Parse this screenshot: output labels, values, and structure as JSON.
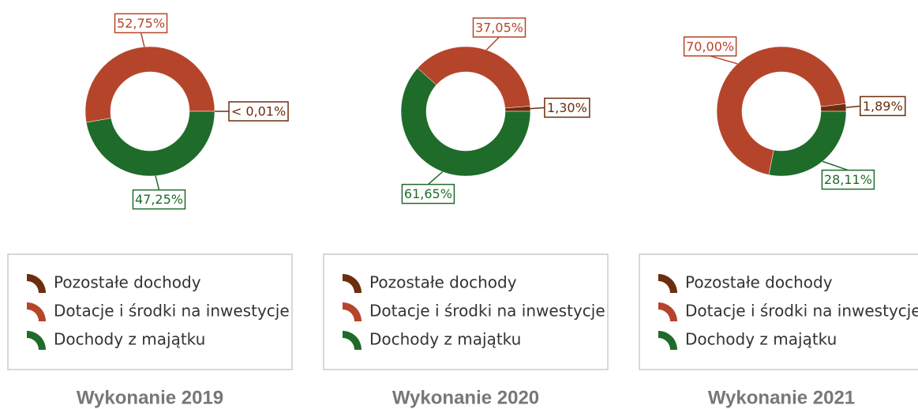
{
  "chart_data": [
    {
      "type": "pie",
      "title": "Wykonanie 2019",
      "categories": [
        "Pozostałe dochody",
        "Dotacje i środki na inwestycje",
        "Dochody z majątku"
      ],
      "values": [
        0,
        52.75,
        47.25
      ],
      "value_labels": [
        "< 0,01%",
        "52,75%",
        "47,25%"
      ],
      "colors": [
        "#6b2e0e",
        "#b5452a",
        "#1f6b2a"
      ]
    },
    {
      "type": "pie",
      "title": "Wykonanie 2020",
      "categories": [
        "Pozostałe dochody",
        "Dotacje i środki na inwestycje",
        "Dochody z majątku"
      ],
      "values": [
        1.3,
        37.05,
        61.65
      ],
      "value_labels": [
        "1,30%",
        "37,05%",
        "61,65%"
      ],
      "colors": [
        "#6b2e0e",
        "#b5452a",
        "#1f6b2a"
      ]
    },
    {
      "type": "pie",
      "title": "Wykonanie 2021",
      "categories": [
        "Pozostałe dochody",
        "Dotacje i środki na inwestycje",
        "Dochody z majątku"
      ],
      "values": [
        1.89,
        70.0,
        28.11
      ],
      "value_labels": [
        "1,89%",
        "70,00%",
        "28,11%"
      ],
      "colors": [
        "#6b2e0e",
        "#b5452a",
        "#1f6b2a"
      ]
    }
  ]
}
